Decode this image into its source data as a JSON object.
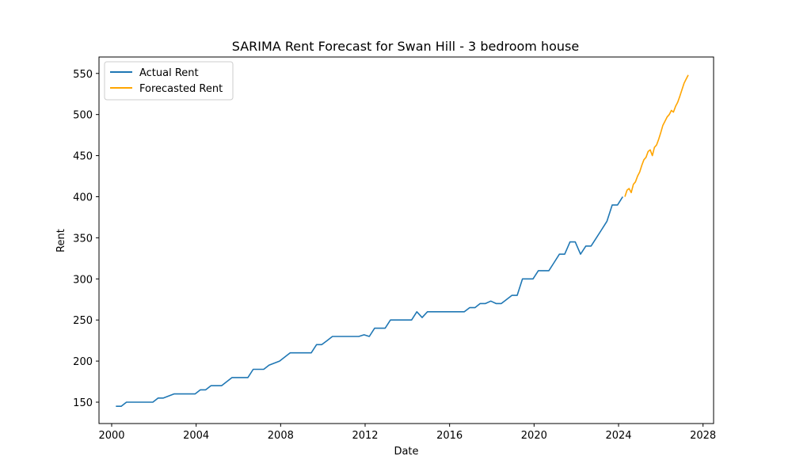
{
  "chart_data": {
    "type": "line",
    "title": "SARIMA Rent Forecast for Swan Hill - 3 bedroom house",
    "xlabel": "Date",
    "ylabel": "Rent",
    "xlim": [
      1999.4,
      2028.5
    ],
    "ylim": [
      124,
      570
    ],
    "x_ticks": [
      2000,
      2004,
      2008,
      2012,
      2016,
      2020,
      2024,
      2028
    ],
    "x_tick_labels": [
      "2000",
      "2004",
      "2008",
      "2012",
      "2016",
      "2020",
      "2024",
      "2028"
    ],
    "y_ticks": [
      150,
      200,
      250,
      300,
      350,
      400,
      450,
      500,
      550
    ],
    "y_tick_labels": [
      "150",
      "200",
      "250",
      "300",
      "350",
      "400",
      "450",
      "500",
      "550"
    ],
    "grid": false,
    "legend_position": "top-left",
    "series": [
      {
        "name": "Actual Rent",
        "color": "#1f77b4",
        "x": [
          2000.2,
          2000.45,
          2000.7,
          2001.0,
          2001.5,
          2001.95,
          2002.2,
          2002.45,
          2002.95,
          2003.5,
          2003.95,
          2004.2,
          2004.45,
          2004.7,
          2004.95,
          2005.2,
          2005.7,
          2006.2,
          2006.45,
          2006.7,
          2006.95,
          2007.2,
          2007.45,
          2007.95,
          2008.2,
          2008.45,
          2008.7,
          2009.2,
          2009.45,
          2009.7,
          2009.95,
          2010.2,
          2010.45,
          2010.7,
          2011.2,
          2011.7,
          2011.95,
          2012.2,
          2012.45,
          2012.7,
          2012.95,
          2013.2,
          2013.45,
          2013.7,
          2014.2,
          2014.45,
          2014.7,
          2014.95,
          2015.2,
          2015.7,
          2016.2,
          2016.7,
          2016.95,
          2017.2,
          2017.45,
          2017.7,
          2017.95,
          2018.2,
          2018.45,
          2018.7,
          2018.95,
          2019.2,
          2019.45,
          2019.7,
          2019.95,
          2020.2,
          2020.45,
          2020.7,
          2020.95,
          2021.2,
          2021.45,
          2021.7,
          2021.95,
          2022.2,
          2022.45,
          2022.7,
          2022.95,
          2023.2,
          2023.45,
          2023.7,
          2023.95,
          2024.2
        ],
        "values": [
          145,
          145,
          150,
          150,
          150,
          150,
          155,
          155,
          160,
          160,
          160,
          165,
          165,
          170,
          170,
          170,
          180,
          180,
          180,
          190,
          190,
          190,
          195,
          200,
          205,
          210,
          210,
          210,
          210,
          220,
          220,
          225,
          230,
          230,
          230,
          230,
          232,
          230,
          240,
          240,
          240,
          250,
          250,
          250,
          250,
          260,
          253,
          260,
          260,
          260,
          260,
          260,
          265,
          265,
          270,
          270,
          273,
          270,
          270,
          275,
          280,
          280,
          300,
          300,
          300,
          310,
          310,
          310,
          320,
          330,
          330,
          345,
          345,
          330,
          340,
          340,
          350,
          360,
          370,
          390,
          390,
          400
        ]
      },
      {
        "name": "Forecasted Rent",
        "color": "#ffa500",
        "x": [
          2024.3,
          2024.4,
          2024.5,
          2024.6,
          2024.7,
          2024.8,
          2024.9,
          2025.0,
          2025.1,
          2025.2,
          2025.3,
          2025.4,
          2025.5,
          2025.6,
          2025.7,
          2025.8,
          2025.9,
          2026.0,
          2026.1,
          2026.2,
          2026.3,
          2026.4,
          2026.5,
          2026.6,
          2026.7,
          2026.8,
          2026.9,
          2027.0,
          2027.1,
          2027.2,
          2027.3
        ],
        "values": [
          400,
          408,
          410,
          405,
          415,
          418,
          425,
          430,
          438,
          445,
          448,
          455,
          457,
          450,
          460,
          463,
          470,
          478,
          487,
          492,
          497,
          500,
          505,
          503,
          510,
          515,
          522,
          530,
          538,
          543,
          548
        ]
      }
    ]
  }
}
